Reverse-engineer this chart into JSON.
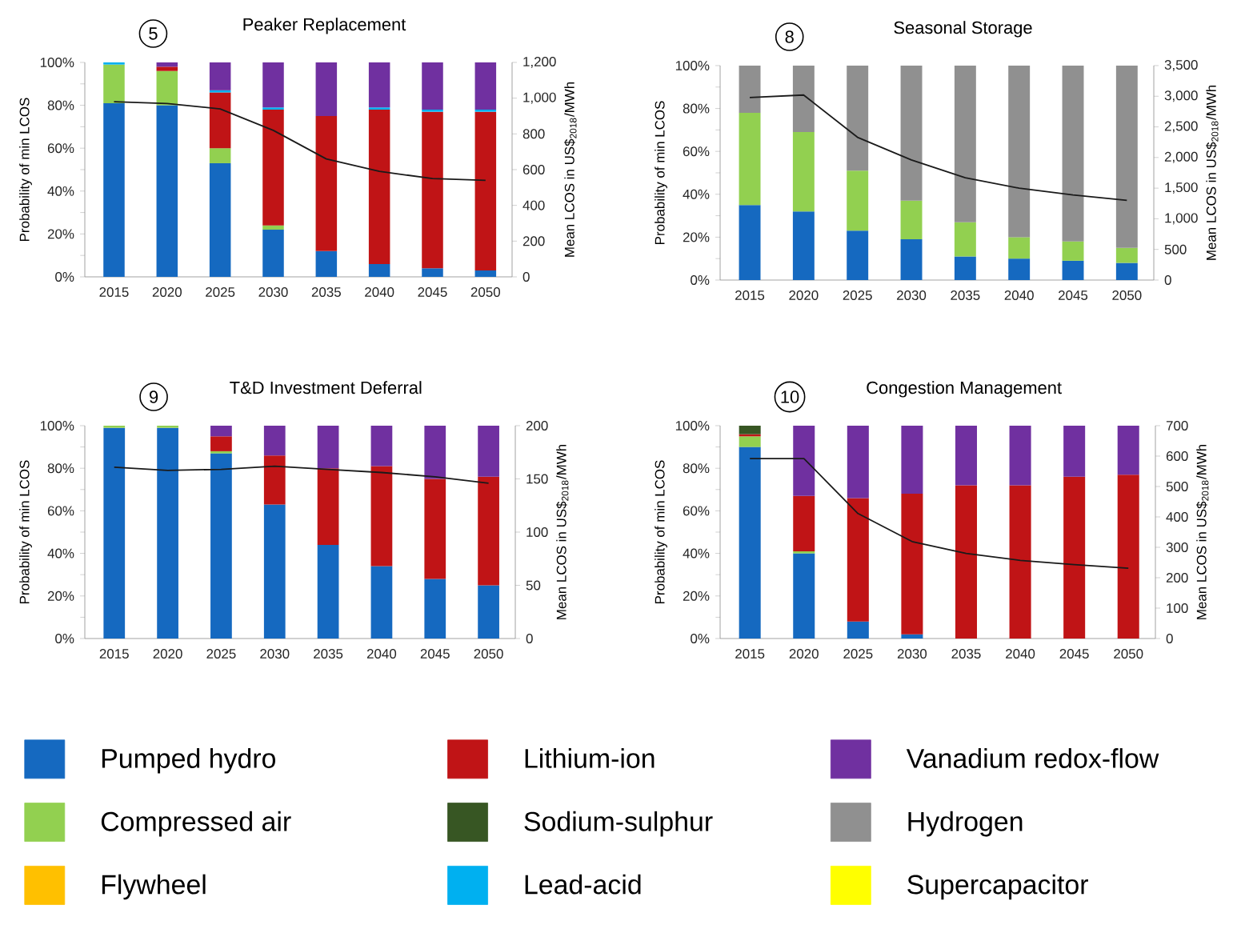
{
  "chart_data": [
    {
      "type": "bar",
      "stacked": true,
      "title": "Peaker Replacement",
      "annotations": [
        "5"
      ],
      "ylabel": "Probability of min LCOS",
      "y2label": "Mean LCOS in US$$_{2018}$/MWh",
      "legend": "bottom",
      "categories": [
        "2015",
        "2020",
        "2025",
        "2030",
        "2035",
        "2040",
        "2045",
        "2050"
      ],
      "ylim": [
        0,
        100
      ],
      "yticks": [
        {
          "value": 0,
          "label": "0%"
        },
        {
          "value": 20,
          "label": "20%"
        },
        {
          "value": 40,
          "label": "40%"
        },
        {
          "value": 60,
          "label": "60%"
        },
        {
          "value": 80,
          "label": "80%"
        },
        {
          "value": 100,
          "label": "100%"
        }
      ],
      "y2lim": [
        0,
        1200
      ],
      "y2ticks": [
        0,
        200,
        400,
        600,
        800,
        {
          "value": 1000,
          "label": "1,000"
        },
        {
          "value": 1200,
          "label": "1,200"
        }
      ],
      "series": [
        {
          "name": "Pumped hydro",
          "color": "#1569c0",
          "values": [
            81,
            80,
            53,
            22,
            12,
            6,
            4,
            3
          ]
        },
        {
          "name": "Compressed air",
          "color": "#92d050",
          "values": [
            18,
            16,
            7,
            2,
            null,
            null,
            null,
            null
          ]
        },
        {
          "name": "Flywheel",
          "color": "#ffc000",
          "values": [
            null,
            null,
            null,
            null,
            null,
            null,
            null,
            null
          ]
        },
        {
          "name": "Lithium-ion",
          "color": "#c01416",
          "values": [
            null,
            2,
            26,
            54,
            63,
            72,
            73,
            74
          ]
        },
        {
          "name": "Sodium-sulphur",
          "color": "#375623",
          "values": [
            null,
            null,
            null,
            null,
            null,
            null,
            null,
            null
          ]
        },
        {
          "name": "Lead-acid",
          "color": "#00b0f0",
          "values": [
            1,
            null,
            1,
            1,
            null,
            1,
            1,
            1
          ]
        },
        {
          "name": "Vanadium redox-flow",
          "color": "#7030a0",
          "values": [
            null,
            2,
            13,
            21,
            25,
            21,
            22,
            22
          ]
        },
        {
          "name": "Hydrogen",
          "color": "#909090",
          "values": [
            null,
            null,
            null,
            null,
            null,
            null,
            null,
            null
          ]
        },
        {
          "name": "Supercapacitor",
          "color": "#ffff00",
          "values": [
            null,
            null,
            null,
            null,
            null,
            null,
            null,
            null
          ]
        },
        {
          "type": "line",
          "axis": "y2",
          "color": "#1a1a1a",
          "values": [
            980,
            970,
            940,
            820,
            660,
            590,
            550,
            540
          ]
        }
      ]
    },
    {
      "type": "bar",
      "stacked": true,
      "title": "Seasonal Storage",
      "annotations": [
        "8"
      ],
      "ylabel": "Probability of min LCOS",
      "y2label": "Mean LCOS in US$$_{2018}$/MWh",
      "categories": [
        "2015",
        "2020",
        "2025",
        "2030",
        "2035",
        "2040",
        "2045",
        "2050"
      ],
      "ylim": [
        0,
        100
      ],
      "yticks": [
        {
          "value": 0,
          "label": "0%"
        },
        {
          "value": 20,
          "label": "20%"
        },
        {
          "value": 40,
          "label": "40%"
        },
        {
          "value": 60,
          "label": "60%"
        },
        {
          "value": 80,
          "label": "80%"
        },
        {
          "value": 100,
          "label": "100%"
        }
      ],
      "y2lim": [
        0,
        3500
      ],
      "y2ticks": [
        0,
        500,
        {
          "value": 1000,
          "label": "1,000"
        },
        {
          "value": 1500,
          "label": "1,500"
        },
        {
          "value": 2000,
          "label": "2,000"
        },
        {
          "value": 2500,
          "label": "2,500"
        },
        {
          "value": 3000,
          "label": "3,000"
        },
        {
          "value": 3500,
          "label": "3,500"
        }
      ],
      "series": [
        {
          "color": "#1569c0",
          "values": [
            35,
            32,
            23,
            19,
            11,
            10,
            9,
            8
          ]
        },
        {
          "color": "#92d050",
          "values": [
            43,
            37,
            28,
            18,
            16,
            10,
            9,
            7
          ]
        },
        {
          "color": "#909090",
          "values": [
            22,
            31,
            49,
            63,
            73,
            80,
            82,
            85
          ]
        },
        {
          "type": "line",
          "axis": "y2",
          "color": "#1a1a1a",
          "values": [
            2980,
            3020,
            2330,
            1960,
            1670,
            1500,
            1390,
            1300
          ]
        }
      ]
    },
    {
      "type": "bar",
      "stacked": true,
      "title": "T&D Investment Deferral",
      "annotations": [
        "9"
      ],
      "ylabel": "Probability of min LCOS",
      "y2label": "Mean LCOS in US$$_{2018}$/MWh",
      "categories": [
        "2015",
        "2020",
        "2025",
        "2030",
        "2035",
        "2040",
        "2045",
        "2050"
      ],
      "ylim": [
        0,
        100
      ],
      "yticks": [
        {
          "value": 0,
          "label": "0%"
        },
        {
          "value": 20,
          "label": "20%"
        },
        {
          "value": 40,
          "label": "40%"
        },
        {
          "value": 60,
          "label": "60%"
        },
        {
          "value": 80,
          "label": "80%"
        },
        {
          "value": 100,
          "label": "100%"
        }
      ],
      "y2lim": [
        0,
        200
      ],
      "y2ticks": [
        0,
        50,
        100,
        150,
        200
      ],
      "series": [
        {
          "color": "#1569c0",
          "values": [
            99,
            99,
            87,
            63,
            44,
            34,
            28,
            25
          ]
        },
        {
          "color": "#92d050",
          "values": [
            1,
            1,
            1,
            null,
            null,
            null,
            null,
            null
          ]
        },
        {
          "color": "#c01416",
          "values": [
            null,
            null,
            7,
            23,
            36,
            47,
            47,
            51
          ]
        },
        {
          "color": "#7030a0",
          "values": [
            null,
            null,
            5,
            14,
            20,
            19,
            25,
            24
          ]
        },
        {
          "type": "line",
          "axis": "y2",
          "color": "#1a1a1a",
          "values": [
            161,
            158,
            159,
            162,
            159,
            156,
            152,
            146
          ]
        }
      ]
    },
    {
      "type": "bar",
      "stacked": true,
      "title": "Congestion Management",
      "annotations": [
        "10"
      ],
      "ylabel": "Probability of min LCOS",
      "y2label": "Mean LCOS in US$$_{2018}$/MWh",
      "categories": [
        "2015",
        "2020",
        "2025",
        "2030",
        "2035",
        "2040",
        "2045",
        "2050"
      ],
      "ylim": [
        0,
        100
      ],
      "yticks": [
        {
          "value": 0,
          "label": "0%"
        },
        {
          "value": 20,
          "label": "20%"
        },
        {
          "value": 40,
          "label": "40%"
        },
        {
          "value": 60,
          "label": "60%"
        },
        {
          "value": 80,
          "label": "80%"
        },
        {
          "value": 100,
          "label": "100%"
        }
      ],
      "y2lim": [
        0,
        700
      ],
      "y2ticks": [
        0,
        100,
        200,
        300,
        400,
        500,
        600,
        700
      ],
      "series": [
        {
          "color": "#1569c0",
          "values": [
            90,
            40,
            8,
            2,
            null,
            null,
            null,
            null
          ]
        },
        {
          "color": "#92d050",
          "values": [
            5,
            1,
            null,
            null,
            null,
            null,
            null,
            null
          ]
        },
        {
          "color": "#c01416",
          "values": [
            1,
            26,
            58,
            66,
            72,
            72,
            76,
            77
          ]
        },
        {
          "color": "#375623",
          "values": [
            4,
            null,
            null,
            null,
            null,
            null,
            null,
            null
          ]
        },
        {
          "color": "#7030a0",
          "values": [
            null,
            33,
            34,
            32,
            28,
            28,
            24,
            23
          ]
        },
        {
          "type": "line",
          "axis": "y2",
          "color": "#1a1a1a",
          "values": [
            592,
            592,
            411,
            319,
            280,
            257,
            243,
            231
          ]
        }
      ]
    }
  ]
}
